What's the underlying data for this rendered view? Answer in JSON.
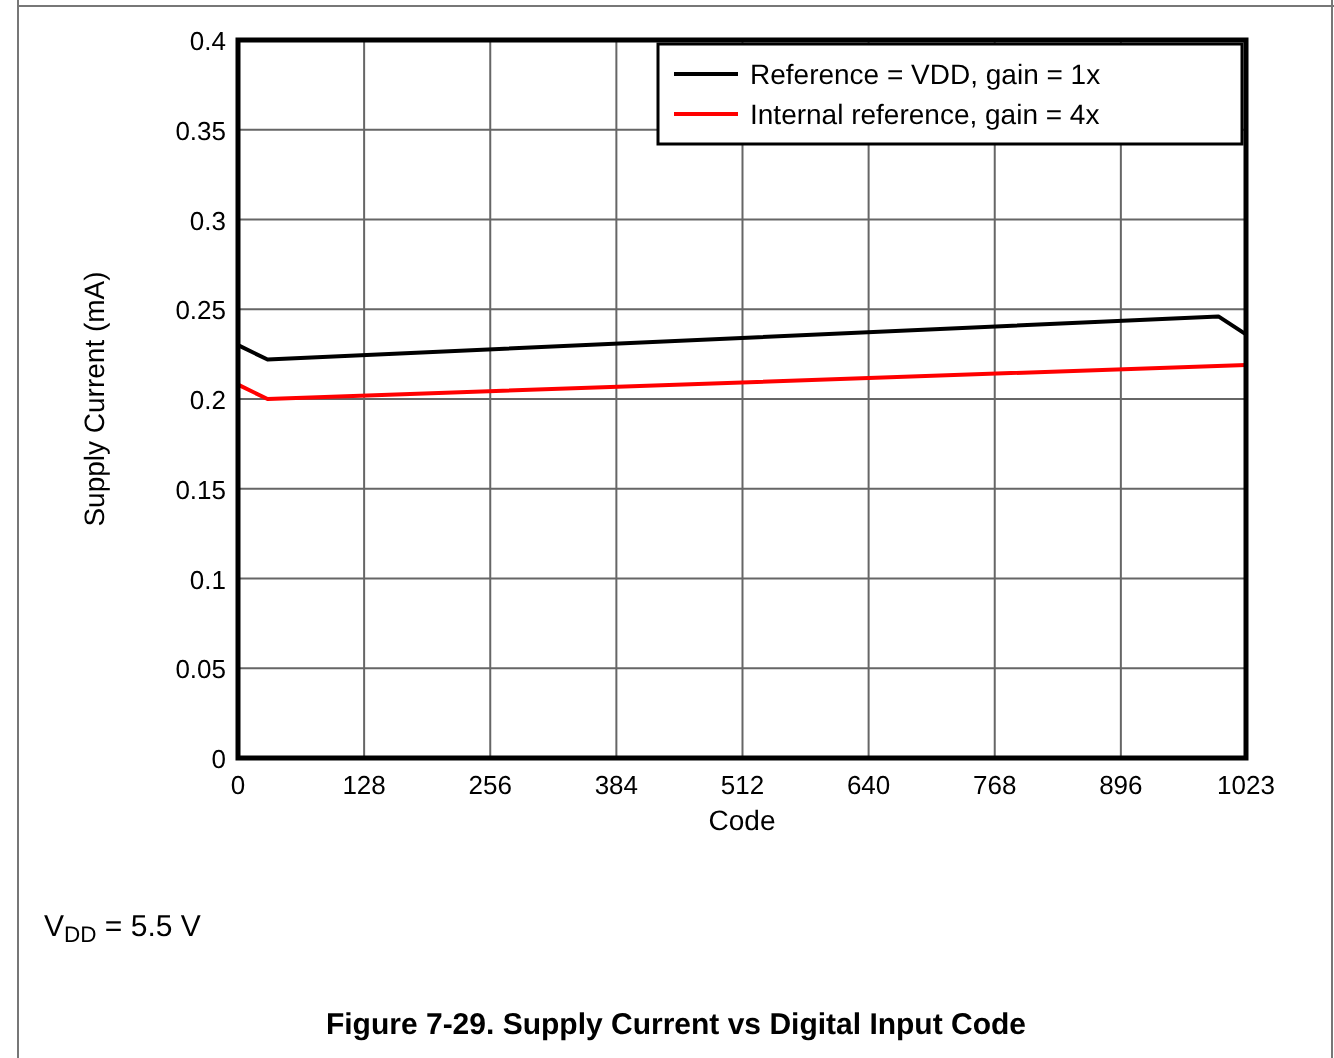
{
  "chart_data": {
    "type": "line",
    "title": "Figure 7-29. Supply Current vs Digital Input Code",
    "xlabel": "Code",
    "ylabel": "Supply Current (mA)",
    "annotations": [
      "V$_{DD}$ = 5.5 V"
    ],
    "xlim": [
      0,
      1023
    ],
    "xticks": [
      0,
      128,
      256,
      384,
      512,
      640,
      768,
      896,
      1023
    ],
    "ylim": [
      0,
      0.4
    ],
    "yticks": [
      0,
      0.05,
      0.1,
      0.15,
      0.2,
      0.25,
      0.3,
      0.35,
      0.4
    ],
    "grid": true,
    "legend": "top right",
    "series": [
      {
        "name": "Reference = VDD, gain = 1x",
        "color": "#000000",
        "x": [
          0,
          30,
          995,
          1023
        ],
        "values": [
          0.23,
          0.222,
          0.246,
          0.236
        ]
      },
      {
        "name": "Internal reference, gain = 4x",
        "color": "#ff0000",
        "x": [
          0,
          30,
          1023
        ],
        "values": [
          0.208,
          0.2,
          0.219
        ]
      }
    ]
  }
}
